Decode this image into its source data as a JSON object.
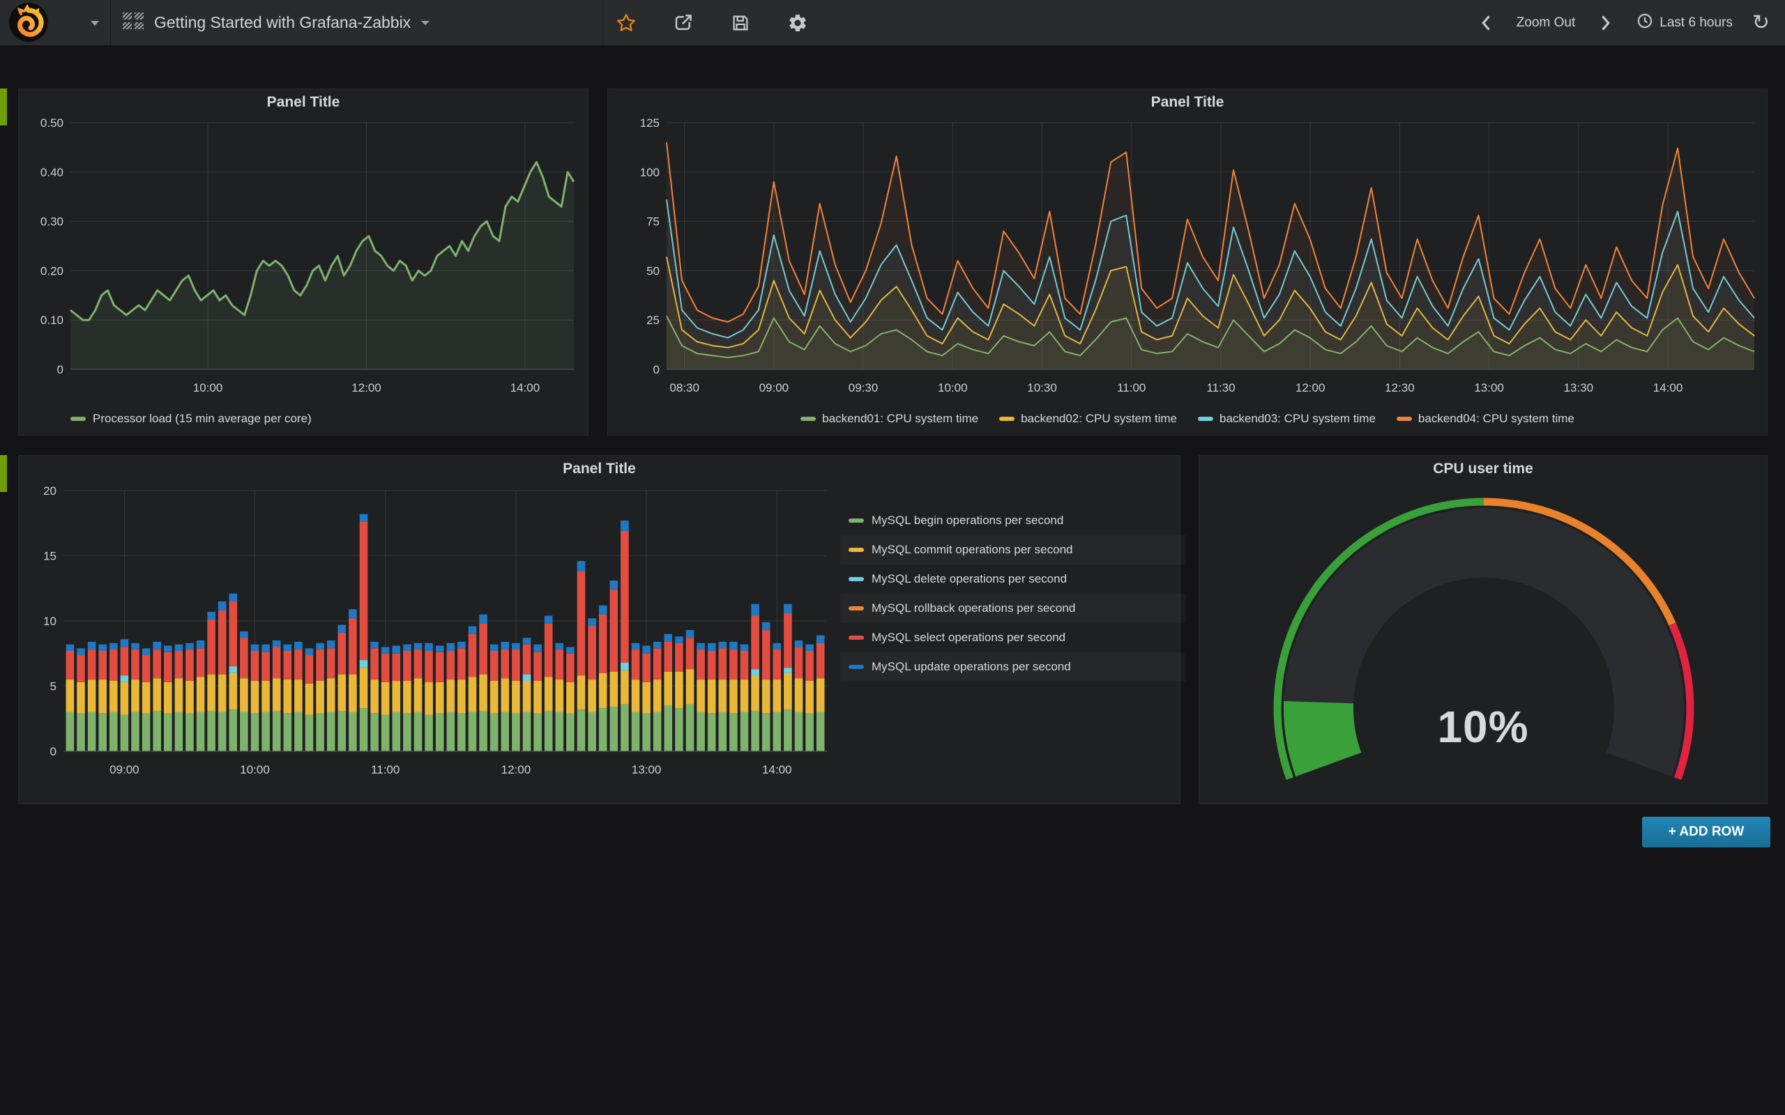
{
  "navbar": {
    "dashboard_title": "Getting Started with Grafana-Zabbix",
    "zoom_out_label": "Zoom Out",
    "time_range_label": "Last 6 hours"
  },
  "add_row_label": "+ ADD ROW",
  "colors": {
    "row_tab": "#6F9E06",
    "star": "#E8861B",
    "nav_icon": "#C6C7C9",
    "panel_bg": "#1F2022",
    "page_bg": "#141416",
    "add_row_bg": "#1D7AA2",
    "gauge_band": "#2B2C2F"
  },
  "chart_data": [
    {
      "name": "processor-load",
      "type": "line",
      "title": "Panel Title",
      "xmin": 496,
      "xmax": 877,
      "ymin": 0,
      "ymax": 0.5,
      "xticks": [
        {
          "m": 600,
          "l": "10:00"
        },
        {
          "m": 720,
          "l": "12:00"
        },
        {
          "m": 840,
          "l": "14:00"
        }
      ],
      "yticks": [
        {
          "v": 0.5,
          "l": "0.50"
        },
        {
          "v": 0.4,
          "l": "0.40"
        },
        {
          "v": 0.3,
          "l": "0.30"
        },
        {
          "v": 0.2,
          "l": "0.20"
        },
        {
          "v": 0.1,
          "l": "0.10"
        },
        {
          "v": 0,
          "l": "0"
        }
      ],
      "series": [
        {
          "name": "Processor load (15 min average per core)",
          "color": "#7EB26D",
          "fill": 0.1,
          "width": 3,
          "values": [
            0.12,
            0.11,
            0.1,
            0.1,
            0.12,
            0.15,
            0.16,
            0.13,
            0.12,
            0.11,
            0.12,
            0.13,
            0.12,
            0.14,
            0.16,
            0.15,
            0.14,
            0.16,
            0.18,
            0.19,
            0.16,
            0.14,
            0.15,
            0.16,
            0.14,
            0.15,
            0.13,
            0.12,
            0.11,
            0.15,
            0.2,
            0.22,
            0.21,
            0.22,
            0.21,
            0.19,
            0.16,
            0.15,
            0.17,
            0.2,
            0.21,
            0.18,
            0.21,
            0.23,
            0.19,
            0.21,
            0.24,
            0.26,
            0.27,
            0.24,
            0.23,
            0.21,
            0.2,
            0.22,
            0.21,
            0.18,
            0.2,
            0.19,
            0.2,
            0.23,
            0.24,
            0.25,
            0.23,
            0.26,
            0.24,
            0.27,
            0.29,
            0.3,
            0.27,
            0.26,
            0.33,
            0.35,
            0.34,
            0.37,
            0.4,
            0.42,
            0.39,
            0.35,
            0.34,
            0.33,
            0.4,
            0.38
          ]
        }
      ]
    },
    {
      "name": "cpu-system-time",
      "type": "line",
      "title": "Panel Title",
      "xmin": 504,
      "xmax": 869,
      "ymin": 0,
      "ymax": 125,
      "xticks": [
        {
          "m": 510,
          "l": "08:30"
        },
        {
          "m": 540,
          "l": "09:00"
        },
        {
          "m": 570,
          "l": "09:30"
        },
        {
          "m": 600,
          "l": "10:00"
        },
        {
          "m": 630,
          "l": "10:30"
        },
        {
          "m": 660,
          "l": "11:00"
        },
        {
          "m": 690,
          "l": "11:30"
        },
        {
          "m": 720,
          "l": "12:00"
        },
        {
          "m": 750,
          "l": "12:30"
        },
        {
          "m": 780,
          "l": "13:00"
        },
        {
          "m": 810,
          "l": "13:30"
        },
        {
          "m": 840,
          "l": "14:00"
        }
      ],
      "yticks": [
        {
          "v": 125,
          "l": "125"
        },
        {
          "v": 100,
          "l": "100"
        },
        {
          "v": 75,
          "l": "75"
        },
        {
          "v": 50,
          "l": "50"
        },
        {
          "v": 25,
          "l": "25"
        },
        {
          "v": 0,
          "l": "0"
        }
      ],
      "series": [
        {
          "name": "backend01: CPU system time",
          "color": "#7EB26D",
          "fill": 0.06,
          "width": 2,
          "values": [
            27,
            12,
            8,
            7,
            6,
            7,
            9,
            26,
            14,
            10,
            22,
            13,
            9,
            12,
            18,
            20,
            15,
            9,
            7,
            13,
            10,
            8,
            17,
            14,
            12,
            19,
            9,
            7,
            15,
            24,
            26,
            10,
            8,
            9,
            18,
            14,
            11,
            25,
            17,
            9,
            13,
            20,
            16,
            10,
            8,
            14,
            22,
            12,
            9,
            16,
            11,
            8,
            14,
            19,
            9,
            7,
            12,
            16,
            10,
            8,
            13,
            9,
            15,
            11,
            9,
            20,
            26,
            14,
            10,
            16,
            12,
            9
          ]
        },
        {
          "name": "backend02: CPU system time",
          "color": "#EAB839",
          "fill": 0.06,
          "width": 2,
          "values": [
            57,
            20,
            14,
            12,
            11,
            13,
            20,
            45,
            26,
            18,
            40,
            25,
            16,
            24,
            35,
            42,
            30,
            17,
            13,
            26,
            19,
            15,
            33,
            28,
            22,
            38,
            17,
            13,
            30,
            50,
            52,
            19,
            15,
            17,
            36,
            27,
            21,
            48,
            33,
            17,
            25,
            40,
            31,
            19,
            15,
            27,
            44,
            23,
            17,
            31,
            21,
            15,
            27,
            37,
            17,
            13,
            23,
            31,
            19,
            15,
            25,
            17,
            29,
            21,
            17,
            39,
            53,
            27,
            19,
            31,
            23,
            17
          ]
        },
        {
          "name": "backend03: CPU system time",
          "color": "#6ED0E0",
          "fill": 0.06,
          "width": 2,
          "values": [
            86,
            30,
            21,
            18,
            16,
            20,
            30,
            68,
            40,
            27,
            60,
            38,
            24,
            36,
            53,
            63,
            45,
            26,
            20,
            39,
            29,
            22,
            50,
            42,
            33,
            57,
            26,
            20,
            45,
            75,
            78,
            29,
            22,
            26,
            54,
            41,
            32,
            72,
            50,
            26,
            38,
            60,
            47,
            29,
            22,
            41,
            66,
            35,
            26,
            47,
            32,
            22,
            41,
            56,
            26,
            20,
            35,
            47,
            29,
            22,
            38,
            26,
            44,
            32,
            26,
            59,
            80,
            41,
            29,
            47,
            35,
            26
          ]
        },
        {
          "name": "backend04: CPU system time",
          "color": "#EF843C",
          "fill": 0.06,
          "width": 2,
          "values": [
            115,
            45,
            30,
            26,
            24,
            28,
            42,
            95,
            55,
            38,
            84,
            53,
            34,
            50,
            74,
            108,
            63,
            36,
            28,
            55,
            41,
            31,
            70,
            59,
            46,
            80,
            36,
            28,
            63,
            105,
            110,
            41,
            31,
            36,
            76,
            57,
            45,
            101,
            70,
            36,
            53,
            84,
            66,
            41,
            31,
            57,
            92,
            49,
            36,
            66,
            45,
            31,
            57,
            78,
            36,
            28,
            49,
            66,
            41,
            31,
            53,
            36,
            62,
            45,
            36,
            83,
            112,
            57,
            41,
            66,
            49,
            36
          ]
        }
      ]
    },
    {
      "name": "mysql-operations",
      "type": "bar",
      "title": "Panel Title",
      "t0": 515,
      "dt": 5,
      "n": 70,
      "xmin": 512,
      "xmax": 863,
      "ymin": 0,
      "ymax": 20,
      "xticks": [
        {
          "m": 540,
          "l": "09:00"
        },
        {
          "m": 600,
          "l": "10:00"
        },
        {
          "m": 660,
          "l": "11:00"
        },
        {
          "m": 720,
          "l": "12:00"
        },
        {
          "m": 780,
          "l": "13:00"
        },
        {
          "m": 840,
          "l": "14:00"
        }
      ],
      "yticks": [
        {
          "v": 20,
          "l": "20"
        },
        {
          "v": 15,
          "l": "15"
        },
        {
          "v": 10,
          "l": "10"
        },
        {
          "v": 5,
          "l": "5"
        },
        {
          "v": 0,
          "l": "0"
        }
      ],
      "series": [
        {
          "name": "MySQL begin operations per second",
          "color": "#7EB26D",
          "values": [
            3.0,
            2.9,
            3.0,
            2.9,
            3.0,
            2.8,
            3.0,
            2.9,
            3.1,
            2.9,
            3.0,
            2.9,
            3.0,
            3.1,
            3.0,
            3.2,
            3.0,
            2.9,
            3.0,
            3.1,
            2.9,
            3.0,
            2.8,
            2.9,
            3.0,
            3.1,
            3.0,
            3.3,
            2.9,
            2.8,
            3.0,
            2.9,
            3.0,
            2.8,
            2.9,
            3.0,
            2.9,
            3.0,
            3.1,
            2.9,
            3.0,
            2.9,
            3.0,
            2.9,
            3.1,
            3.0,
            2.9,
            3.2,
            3.0,
            3.3,
            3.4,
            3.6,
            3.0,
            2.9,
            3.0,
            3.5,
            3.3,
            3.6,
            3.0,
            2.9,
            3.0,
            2.9,
            3.0,
            3.1,
            2.9,
            3.0,
            3.2,
            3.0,
            2.9,
            3.0
          ]
        },
        {
          "name": "MySQL commit operations per second",
          "color": "#EAB839",
          "values": [
            2.5,
            2.4,
            2.5,
            2.6,
            2.4,
            2.5,
            2.5,
            2.4,
            2.5,
            2.4,
            2.6,
            2.5,
            2.7,
            2.8,
            2.9,
            2.8,
            2.6,
            2.5,
            2.4,
            2.5,
            2.6,
            2.5,
            2.4,
            2.5,
            2.6,
            2.8,
            2.9,
            3.1,
            2.6,
            2.5,
            2.4,
            2.5,
            2.6,
            2.5,
            2.4,
            2.5,
            2.6,
            2.7,
            2.8,
            2.5,
            2.6,
            2.5,
            2.4,
            2.5,
            2.6,
            2.5,
            2.4,
            2.6,
            2.5,
            2.7,
            2.7,
            2.6,
            2.5,
            2.4,
            2.5,
            2.6,
            2.8,
            2.7,
            2.5,
            2.6,
            2.5,
            2.6,
            2.5,
            2.7,
            2.6,
            2.5,
            2.8,
            2.6,
            2.5,
            2.6
          ]
        },
        {
          "name": "MySQL delete operations per second",
          "color": "#6ED0E0",
          "values": [
            0,
            0,
            0,
            0,
            0,
            0.5,
            0,
            0,
            0,
            0,
            0,
            0,
            0,
            0,
            0,
            0.5,
            0,
            0,
            0,
            0,
            0,
            0,
            0,
            0,
            0,
            0,
            0,
            0.6,
            0,
            0,
            0,
            0,
            0,
            0,
            0,
            0,
            0,
            0,
            0,
            0,
            0,
            0,
            0.5,
            0,
            0,
            0,
            0,
            0,
            0,
            0,
            0,
            0.6,
            0,
            0,
            0,
            0,
            0,
            0,
            0,
            0,
            0,
            0,
            0,
            0.5,
            0,
            0,
            0.4,
            0,
            0,
            0
          ]
        },
        {
          "name": "MySQL rollback operations per second",
          "color": "#EF843C",
          "values": [
            0,
            0,
            0,
            0,
            0,
            0,
            0,
            0,
            0,
            0,
            0,
            0,
            0,
            0,
            0,
            0,
            0,
            0,
            0,
            0,
            0,
            0,
            0,
            0,
            0,
            0,
            0,
            0,
            0,
            0,
            0,
            0,
            0,
            0,
            0,
            0,
            0,
            0,
            0,
            0,
            0,
            0,
            0,
            0,
            0,
            0,
            0,
            0,
            0,
            0,
            0,
            0,
            0,
            0,
            0,
            0,
            0,
            0,
            0,
            0,
            0,
            0,
            0,
            0,
            0,
            0,
            0,
            0,
            0,
            0
          ]
        },
        {
          "name": "MySQL select operations per second",
          "color": "#E24D42",
          "values": [
            2.2,
            2.1,
            2.3,
            2.2,
            2.4,
            2.2,
            2.3,
            2.1,
            2.2,
            2.3,
            2.1,
            2.4,
            2.2,
            4.2,
            4.9,
            5.0,
            3.1,
            2.3,
            2.2,
            2.4,
            2.2,
            2.3,
            2.2,
            2.4,
            2.3,
            3.2,
            4.3,
            10.6,
            2.4,
            2.2,
            2.1,
            2.3,
            2.2,
            2.4,
            2.3,
            2.2,
            2.4,
            3.3,
            3.9,
            2.3,
            2.2,
            2.4,
            2.3,
            2.2,
            4.1,
            2.3,
            2.2,
            8.0,
            4.1,
            4.5,
            6.3,
            10.1,
            2.3,
            2.2,
            2.4,
            2.3,
            2.2,
            2.4,
            2.3,
            2.2,
            2.4,
            2.3,
            2.2,
            4.1,
            3.8,
            2.3,
            4.2,
            2.4,
            2.3,
            2.7
          ]
        },
        {
          "name": "MySQL update operations per second",
          "color": "#1F78C1",
          "values": [
            0.5,
            0.5,
            0.6,
            0.5,
            0.5,
            0.6,
            0.5,
            0.5,
            0.6,
            0.5,
            0.5,
            0.5,
            0.6,
            0.6,
            0.7,
            0.6,
            0.5,
            0.5,
            0.6,
            0.5,
            0.5,
            0.6,
            0.5,
            0.5,
            0.6,
            0.6,
            0.7,
            0.6,
            0.5,
            0.5,
            0.6,
            0.5,
            0.5,
            0.6,
            0.5,
            0.6,
            0.5,
            0.6,
            0.7,
            0.5,
            0.6,
            0.5,
            0.5,
            0.6,
            0.6,
            0.5,
            0.5,
            0.8,
            0.6,
            0.7,
            0.7,
            0.8,
            0.5,
            0.6,
            0.5,
            0.6,
            0.5,
            0.6,
            0.5,
            0.6,
            0.5,
            0.6,
            0.5,
            0.9,
            0.6,
            0.5,
            0.7,
            0.5,
            0.5,
            0.6
          ]
        }
      ]
    },
    {
      "name": "cpu-user-time-gauge",
      "type": "gauge",
      "title": "CPU user time",
      "value": 10,
      "unit": "%",
      "display": "10%",
      "min": 0,
      "max": 100,
      "span_deg": 220,
      "thresholds": [
        {
          "to": 50,
          "color": "#3AA03A"
        },
        {
          "to": 80,
          "color": "#E8822C"
        },
        {
          "to": 100,
          "color": "#E0243F"
        }
      ],
      "value_color": "#3AA03A"
    }
  ]
}
